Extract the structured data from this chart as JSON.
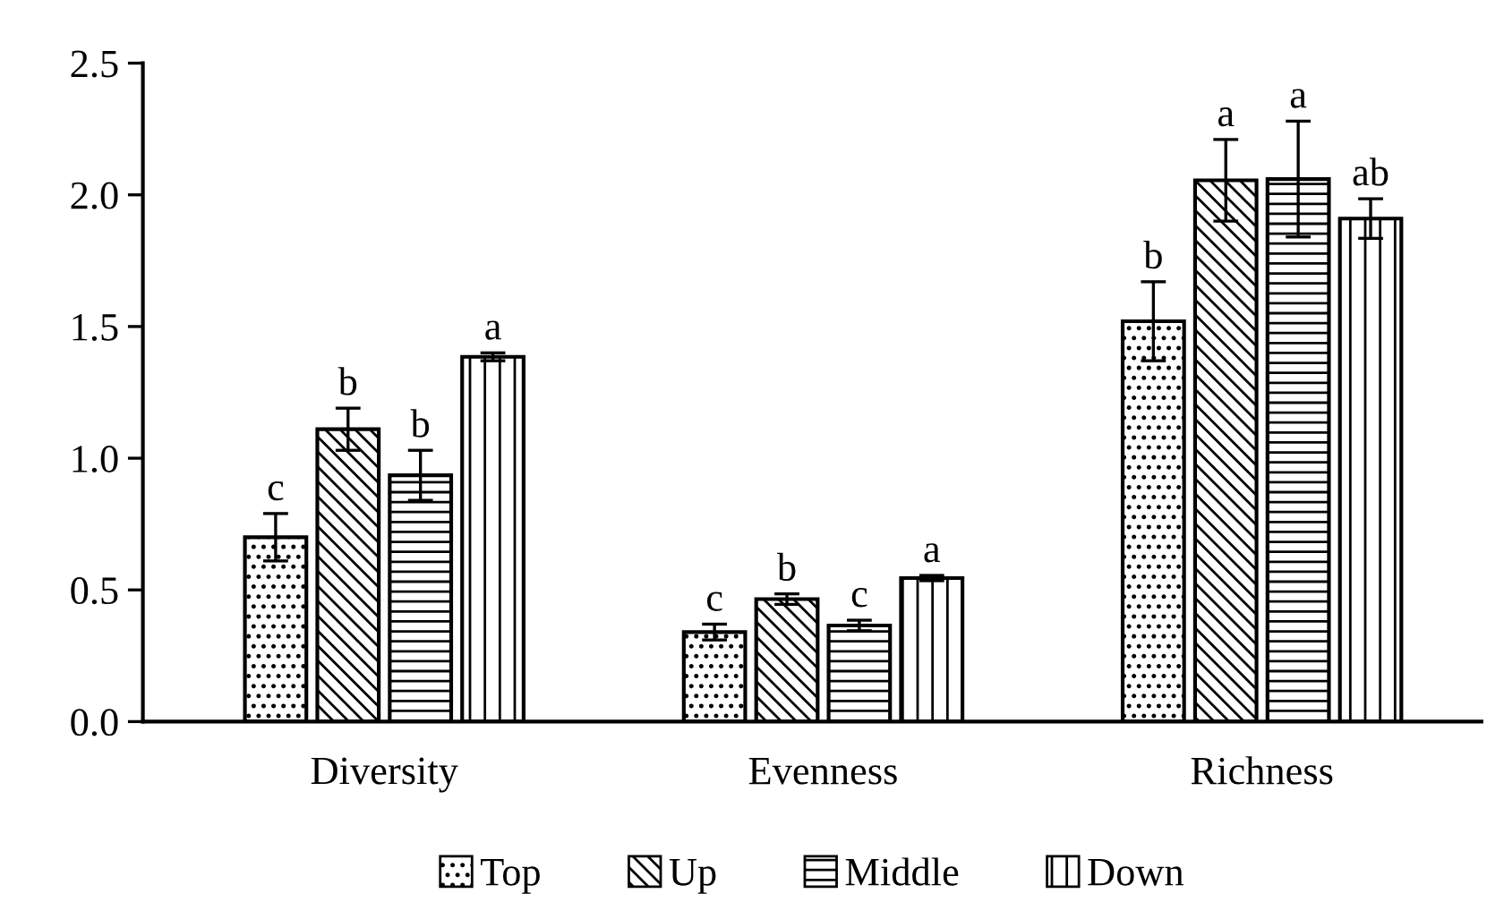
{
  "chart_data": {
    "type": "bar",
    "categories": [
      "Diversity",
      "Evenness",
      "Richness"
    ],
    "series": [
      {
        "name": "Top",
        "color": "#000000",
        "values": [
          0.7,
          0.34,
          1.52
        ],
        "errors": [
          0.09,
          0.03,
          0.15
        ],
        "value_labels": [
          "c",
          "c",
          "b"
        ]
      },
      {
        "name": "Up",
        "color": "#000000",
        "values": [
          1.11,
          0.465,
          2.055
        ],
        "errors": [
          0.08,
          0.02,
          0.155
        ],
        "value_labels": [
          "b",
          "b",
          "a"
        ]
      },
      {
        "name": "Middle",
        "color": "#000000",
        "values": [
          0.935,
          0.365,
          2.06
        ],
        "errors": [
          0.095,
          0.02,
          0.22
        ],
        "value_labels": [
          "b",
          "c",
          "a"
        ]
      },
      {
        "name": "Down",
        "color": "#000000",
        "values": [
          1.385,
          0.545,
          1.91
        ],
        "errors": [
          0.015,
          0.01,
          0.075
        ],
        "value_labels": [
          "a",
          "a",
          "ab"
        ]
      }
    ],
    "ylim": [
      0,
      2.5
    ],
    "yticks": [
      {
        "value": 0,
        "label": "0.0"
      },
      {
        "value": 0.5,
        "label": "0.5"
      },
      {
        "value": 1,
        "label": "1.0"
      },
      {
        "value": 1.5,
        "label": "1.5"
      },
      {
        "value": 2,
        "label": "2.0"
      },
      {
        "value": 2.5,
        "label": "2.5"
      }
    ],
    "grid": false,
    "legend": "bottom"
  }
}
